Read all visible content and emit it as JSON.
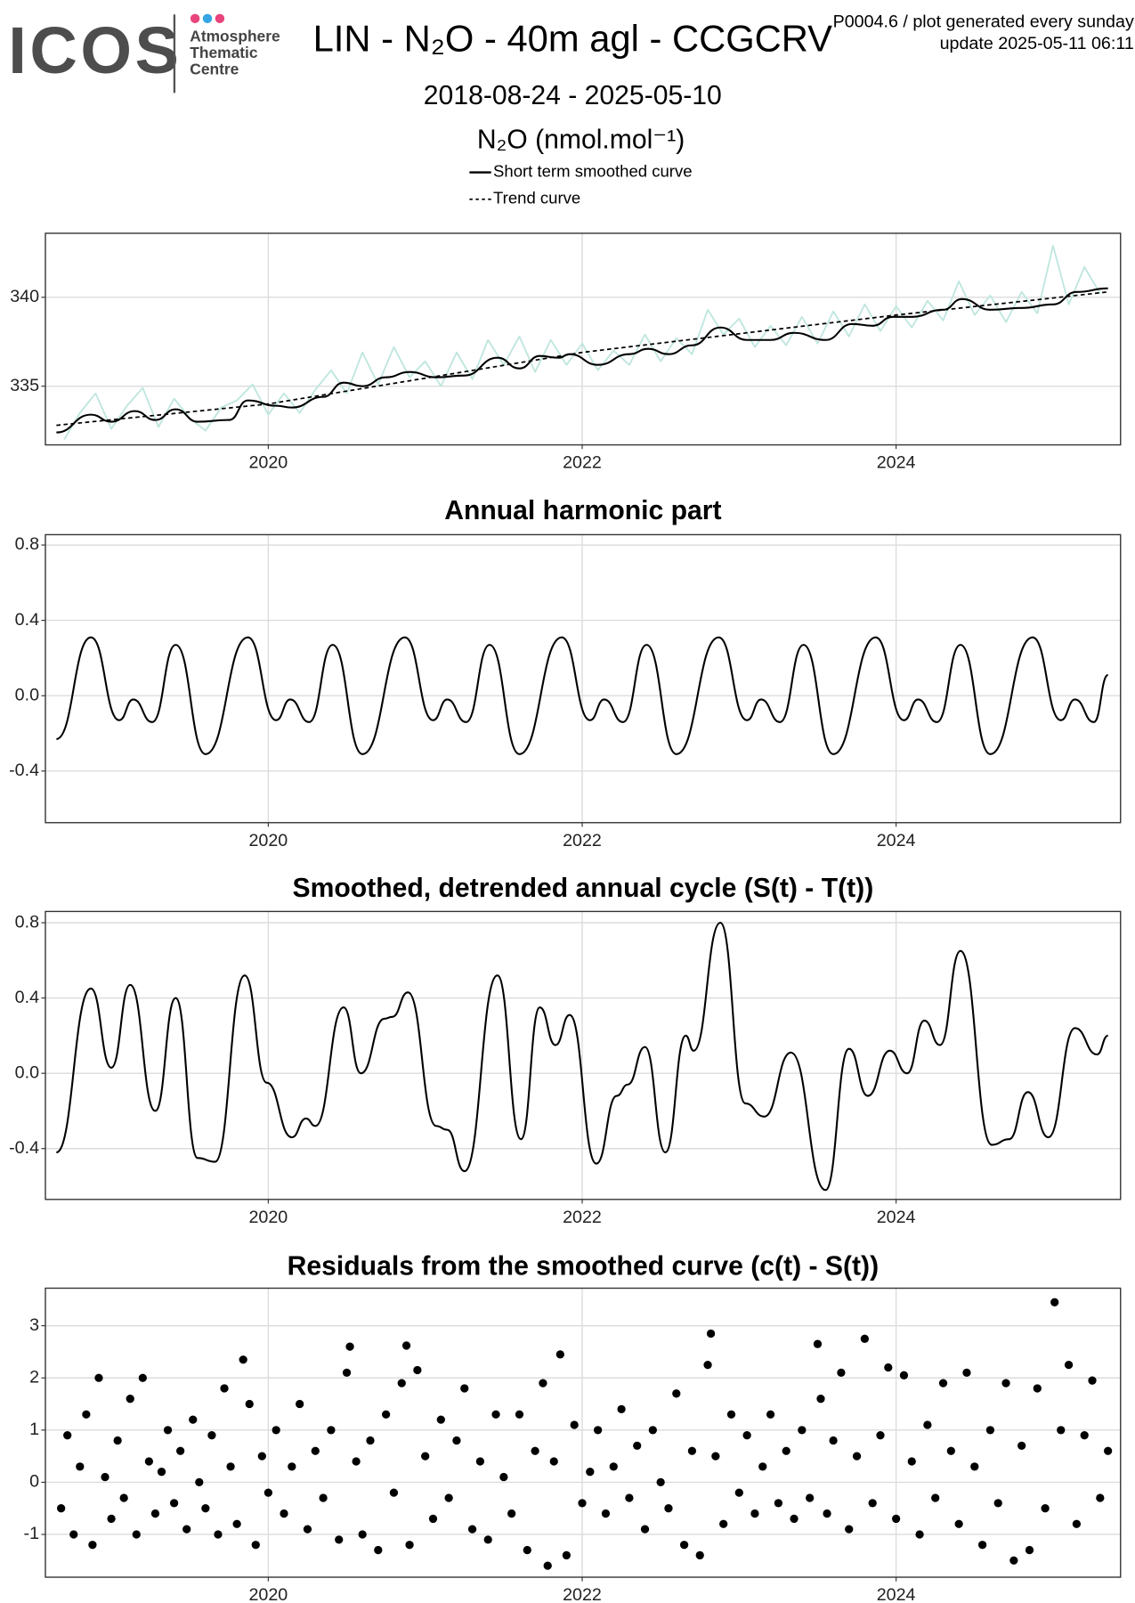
{
  "header": {
    "logo": "ICOS",
    "logo_sub": [
      "Atmosphere",
      "Thematic",
      "Centre"
    ],
    "info": [
      "P0004.6 / plot generated every sunday",
      "update  2025-05-11 06:11"
    ]
  },
  "chart_data": [
    {
      "type": "line",
      "title": "LIN - N₂O - 40m agl - CCGCRV",
      "subtitle": "2018-08-24 - 2025-05-10",
      "y_label": "N₂O (nmol.mol⁻¹)",
      "xlim": [
        2018.58,
        2025.43
      ],
      "xticks": [
        2020,
        2022,
        2024
      ],
      "ylim": [
        331.7,
        343.6
      ],
      "yticks": [
        335,
        340
      ],
      "grid": true,
      "series": [
        {
          "color": "#bfe6df",
          "curve": "straight",
          "x": [
            2018.7,
            2018.8,
            2018.9,
            2019.0,
            2019.1,
            2019.2,
            2019.3,
            2019.4,
            2019.5,
            2019.6,
            2019.7,
            2019.8,
            2019.9,
            2020.0,
            2020.1,
            2020.2,
            2020.3,
            2020.4,
            2020.5,
            2020.6,
            2020.7,
            2020.8,
            2020.9,
            2021.0,
            2021.1,
            2021.2,
            2021.3,
            2021.4,
            2021.5,
            2021.6,
            2021.7,
            2021.8,
            2021.9,
            2022.0,
            2022.1,
            2022.2,
            2022.3,
            2022.4,
            2022.5,
            2022.6,
            2022.7,
            2022.8,
            2022.9,
            2023.0,
            2023.1,
            2023.2,
            2023.3,
            2023.4,
            2023.5,
            2023.6,
            2023.7,
            2023.8,
            2023.9,
            2024.0,
            2024.1,
            2024.2,
            2024.3,
            2024.4,
            2024.5,
            2024.6,
            2024.7,
            2024.8,
            2024.9,
            2025.0,
            2025.1,
            2025.2,
            2025.3
          ],
          "values": [
            332.0,
            333.5,
            334.6,
            332.6,
            333.9,
            334.9,
            332.7,
            334.3,
            333.2,
            332.5,
            333.8,
            334.2,
            335.1,
            333.4,
            334.6,
            333.5,
            334.8,
            335.9,
            334.6,
            336.9,
            335.1,
            337.2,
            335.5,
            336.4,
            335.0,
            336.9,
            335.4,
            337.6,
            336.2,
            337.8,
            335.8,
            337.6,
            336.2,
            337.4,
            335.9,
            337.0,
            336.2,
            337.9,
            336.4,
            337.7,
            336.8,
            339.3,
            337.9,
            338.8,
            337.2,
            338.4,
            337.3,
            338.9,
            337.4,
            339.2,
            337.8,
            339.6,
            338.1,
            339.5,
            338.3,
            339.8,
            338.7,
            340.9,
            339.0,
            340.1,
            338.6,
            340.3,
            339.1,
            342.9,
            339.6,
            341.7,
            340.2
          ]
        },
        {
          "name": "Short term smoothed curve",
          "color": "#000000",
          "curve": "smooth",
          "x": [
            2018.65,
            2018.87,
            2019.0,
            2019.15,
            2019.28,
            2019.41,
            2019.55,
            2019.75,
            2019.87,
            2020.05,
            2020.15,
            2020.35,
            2020.48,
            2020.6,
            2020.75,
            2020.9,
            2021.07,
            2021.25,
            2021.46,
            2021.6,
            2021.73,
            2021.85,
            2021.92,
            2022.1,
            2022.3,
            2022.42,
            2022.55,
            2022.7,
            2022.88,
            2023.05,
            2023.2,
            2023.35,
            2023.55,
            2023.72,
            2023.85,
            2023.98,
            2024.1,
            2024.3,
            2024.42,
            2024.6,
            2024.8,
            2025.0,
            2025.15,
            2025.35
          ],
          "values": [
            332.4,
            333.4,
            333.0,
            333.6,
            333.1,
            333.7,
            333.0,
            333.1,
            334.2,
            333.9,
            333.8,
            334.4,
            335.2,
            335.0,
            335.5,
            335.8,
            335.5,
            335.6,
            336.6,
            336.0,
            336.7,
            336.6,
            336.8,
            336.2,
            336.8,
            337.1,
            336.8,
            337.3,
            338.3,
            337.6,
            337.6,
            338.0,
            337.6,
            338.5,
            338.4,
            338.9,
            338.9,
            339.3,
            339.9,
            339.3,
            339.4,
            339.6,
            340.3,
            340.5
          ]
        },
        {
          "name": "Trend curve",
          "color": "#000000",
          "curve": "straight",
          "dashed": true,
          "x": [
            2018.65,
            2020,
            2022,
            2024,
            2025.35
          ],
          "values": [
            332.8,
            334.0,
            336.9,
            339.0,
            340.3
          ]
        }
      ]
    },
    {
      "type": "line",
      "title": "Annual harmonic part",
      "xlim": [
        2018.58,
        2025.43
      ],
      "xticks": [
        2020,
        2022,
        2024
      ],
      "ylim": [
        -0.674,
        0.855
      ],
      "yticks": [
        -0.4,
        {
          "value": 0,
          "label": "0.0"
        },
        0.4,
        0.8
      ],
      "grid": true,
      "series": [
        {
          "color": "#000000",
          "curve": "smooth",
          "x": [
            2018.65,
            2018.87,
            2019.05,
            2019.14,
            2019.26,
            2019.41,
            2019.6,
            2019.87,
            2020.05,
            2020.14,
            2020.26,
            2020.41,
            2020.6,
            2020.87,
            2021.05,
            2021.14,
            2021.26,
            2021.41,
            2021.6,
            2021.87,
            2022.05,
            2022.14,
            2022.26,
            2022.41,
            2022.6,
            2022.87,
            2023.05,
            2023.14,
            2023.26,
            2023.41,
            2023.6,
            2023.87,
            2024.05,
            2024.14,
            2024.26,
            2024.41,
            2024.6,
            2024.87,
            2025.05,
            2025.14,
            2025.26,
            2025.35
          ],
          "values": [
            -0.23,
            0.31,
            -0.13,
            -0.02,
            -0.14,
            0.27,
            -0.31,
            0.31,
            -0.13,
            -0.02,
            -0.14,
            0.27,
            -0.31,
            0.31,
            -0.13,
            -0.02,
            -0.14,
            0.27,
            -0.31,
            0.31,
            -0.13,
            -0.02,
            -0.14,
            0.27,
            -0.31,
            0.31,
            -0.13,
            -0.02,
            -0.14,
            0.27,
            -0.31,
            0.31,
            -0.13,
            -0.02,
            -0.14,
            0.27,
            -0.31,
            0.31,
            -0.13,
            -0.02,
            -0.14,
            0.11
          ]
        }
      ]
    },
    {
      "type": "line",
      "title": "Smoothed, detrended annual cycle (S(t) - T(t))",
      "xlim": [
        2018.58,
        2025.43
      ],
      "xticks": [
        2020,
        2022,
        2024
      ],
      "ylim": [
        -0.67,
        0.86
      ],
      "yticks": [
        -0.4,
        {
          "value": 0,
          "label": "0.0"
        },
        0.4,
        0.8
      ],
      "grid": true,
      "series": [
        {
          "color": "#000000",
          "curve": "smooth",
          "x": [
            2018.65,
            2018.87,
            2019.0,
            2019.12,
            2019.28,
            2019.41,
            2019.55,
            2019.66,
            2019.85,
            2019.99,
            2020.15,
            2020.24,
            2020.3,
            2020.48,
            2020.59,
            2020.74,
            2020.79,
            2020.89,
            2021.07,
            2021.14,
            2021.25,
            2021.46,
            2021.61,
            2021.73,
            2021.83,
            2021.92,
            2022.09,
            2022.22,
            2022.29,
            2022.4,
            2022.53,
            2022.66,
            2022.71,
            2022.88,
            2023.04,
            2023.16,
            2023.33,
            2023.55,
            2023.7,
            2023.82,
            2023.96,
            2024.07,
            2024.18,
            2024.28,
            2024.41,
            2024.61,
            2024.72,
            2024.84,
            2024.97,
            2025.14,
            2025.28,
            2025.35
          ],
          "values": [
            -0.42,
            0.45,
            0.03,
            0.47,
            -0.2,
            0.4,
            -0.45,
            -0.47,
            0.52,
            -0.05,
            -0.34,
            -0.24,
            -0.28,
            0.35,
            0.0,
            0.29,
            0.3,
            0.43,
            -0.28,
            -0.3,
            -0.52,
            0.52,
            -0.35,
            0.35,
            0.15,
            0.31,
            -0.48,
            -0.12,
            -0.06,
            0.14,
            -0.42,
            0.2,
            0.12,
            0.8,
            -0.16,
            -0.23,
            0.11,
            -0.62,
            0.13,
            -0.12,
            0.12,
            0.0,
            0.28,
            0.15,
            0.65,
            -0.38,
            -0.35,
            -0.1,
            -0.34,
            0.24,
            0.1,
            0.2
          ]
        }
      ]
    },
    {
      "type": "scatter",
      "title": "Residuals from the smoothed curve (c(t) - S(t))",
      "color": "#000000",
      "xlim": [
        2018.58,
        2025.43
      ],
      "xticks": [
        2020,
        2022,
        2024
      ],
      "ylim": [
        -1.82,
        3.72
      ],
      "yticks": [
        -1,
        0,
        1,
        2,
        3
      ],
      "grid": true,
      "x": [
        2018.68,
        2018.72,
        2018.76,
        2018.8,
        2018.84,
        2018.88,
        2018.92,
        2018.96,
        2019.0,
        2019.04,
        2019.08,
        2019.12,
        2019.16,
        2019.2,
        2019.24,
        2019.28,
        2019.32,
        2019.36,
        2019.4,
        2019.44,
        2019.48,
        2019.52,
        2019.56,
        2019.6,
        2019.64,
        2019.68,
        2019.72,
        2019.76,
        2019.8,
        2019.84,
        2019.88,
        2019.92,
        2019.96,
        2020.0,
        2020.05,
        2020.1,
        2020.15,
        2020.2,
        2020.25,
        2020.3,
        2020.35,
        2020.4,
        2020.45,
        2020.5,
        2020.52,
        2020.56,
        2020.6,
        2020.65,
        2020.7,
        2020.75,
        2020.8,
        2020.85,
        2020.88,
        2020.9,
        2020.95,
        2021.0,
        2021.05,
        2021.1,
        2021.15,
        2021.2,
        2021.25,
        2021.3,
        2021.35,
        2021.4,
        2021.45,
        2021.5,
        2021.55,
        2021.6,
        2021.65,
        2021.7,
        2021.75,
        2021.78,
        2021.82,
        2021.86,
        2021.9,
        2021.95,
        2022.0,
        2022.05,
        2022.1,
        2022.15,
        2022.2,
        2022.25,
        2022.3,
        2022.35,
        2022.4,
        2022.45,
        2022.5,
        2022.55,
        2022.6,
        2022.65,
        2022.7,
        2022.75,
        2022.8,
        2022.82,
        2022.85,
        2022.9,
        2022.95,
        2023.0,
        2023.05,
        2023.1,
        2023.15,
        2023.2,
        2023.25,
        2023.3,
        2023.35,
        2023.4,
        2023.45,
        2023.5,
        2023.52,
        2023.56,
        2023.6,
        2023.65,
        2023.7,
        2023.75,
        2023.8,
        2023.85,
        2023.9,
        2023.95,
        2024.0,
        2024.05,
        2024.1,
        2024.15,
        2024.2,
        2024.25,
        2024.3,
        2024.35,
        2024.4,
        2024.45,
        2024.5,
        2024.55,
        2024.6,
        2024.65,
        2024.7,
        2024.75,
        2024.8,
        2024.85,
        2024.9,
        2024.95,
        2025.01,
        2025.05,
        2025.1,
        2025.15,
        2025.2,
        2025.25,
        2025.3,
        2025.35
      ],
      "values": [
        -0.5,
        0.9,
        -1.0,
        0.3,
        1.3,
        -1.2,
        2.0,
        0.1,
        -0.7,
        0.8,
        -0.3,
        1.6,
        -1.0,
        2.0,
        0.4,
        -0.6,
        0.2,
        1.0,
        -0.4,
        0.6,
        -0.9,
        1.2,
        0.0,
        -0.5,
        0.9,
        -1.0,
        1.8,
        0.3,
        -0.8,
        2.35,
        1.5,
        -1.2,
        0.5,
        -0.2,
        1.0,
        -0.6,
        0.3,
        1.5,
        -0.9,
        0.6,
        -0.3,
        1.0,
        -1.1,
        2.1,
        2.6,
        0.4,
        -1.0,
        0.8,
        -1.3,
        1.3,
        -0.2,
        1.9,
        2.62,
        -1.2,
        2.15,
        0.5,
        -0.7,
        1.2,
        -0.3,
        0.8,
        1.8,
        -0.9,
        0.4,
        -1.1,
        1.3,
        0.1,
        -0.6,
        1.3,
        -1.3,
        0.6,
        1.9,
        -1.6,
        0.4,
        2.45,
        -1.4,
        1.1,
        -0.4,
        0.2,
        1.0,
        -0.6,
        0.3,
        1.4,
        -0.3,
        0.7,
        -0.9,
        1.0,
        0.0,
        -0.5,
        1.7,
        -1.2,
        0.6,
        -1.4,
        2.25,
        2.85,
        0.5,
        -0.8,
        1.3,
        -0.2,
        0.9,
        -0.6,
        0.3,
        1.3,
        -0.4,
        0.6,
        -0.7,
        1.0,
        -0.3,
        2.65,
        1.6,
        -0.6,
        0.8,
        2.1,
        -0.9,
        0.5,
        2.75,
        -0.4,
        0.9,
        2.2,
        -0.7,
        2.05,
        0.4,
        -1.0,
        1.1,
        -0.3,
        1.9,
        0.6,
        -0.8,
        2.1,
        0.3,
        -1.2,
        1.0,
        -0.4,
        1.9,
        -1.5,
        0.7,
        -1.3,
        1.8,
        -0.5,
        3.45,
        1.0,
        2.25,
        -0.8,
        0.9,
        1.95,
        -0.3,
        0.6
      ]
    }
  ]
}
